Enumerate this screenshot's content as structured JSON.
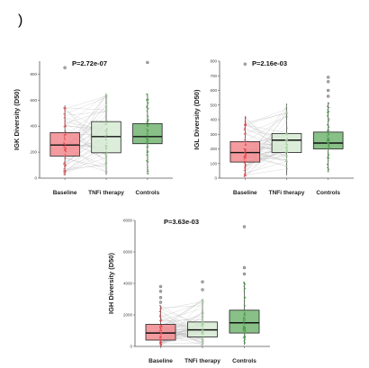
{
  "panel_label": ")",
  "colors": {
    "baseline": "#f28a8e",
    "baseline_points": "#e24a52",
    "tnfi": "#d6ebd3",
    "tnfi_points": "#a9cfa4",
    "controls": "#73b572",
    "controls_points": "#4f9a4e"
  },
  "chart_data": [
    {
      "type": "box",
      "ylabel": "IGK Diversity (D50)",
      "pvalue": "P=2.72e-07",
      "categories": [
        "Baseline",
        "TNFi therapy",
        "Controls"
      ],
      "ylim": [
        0,
        900
      ],
      "yticks": [
        0,
        200,
        400,
        600,
        800
      ],
      "boxes": [
        {
          "name": "Baseline",
          "q1": 170,
          "median": 255,
          "q3": 350,
          "whisker_low": 20,
          "whisker_high": 560,
          "outliers": [
            850
          ]
        },
        {
          "name": "TNFi therapy",
          "q1": 195,
          "median": 320,
          "q3": 435,
          "whisker_low": 25,
          "whisker_high": 650,
          "outliers": []
        },
        {
          "name": "Controls",
          "q1": 265,
          "median": 320,
          "q3": 420,
          "whisker_low": 30,
          "whisker_high": 650,
          "outliers": [
            890
          ]
        }
      ]
    },
    {
      "type": "box",
      "ylabel": "IGL Diversity (D50)",
      "pvalue": "P=2.16e-03",
      "categories": [
        "Baseline",
        "TNFi therapy",
        "Controls"
      ],
      "ylim": [
        0,
        800
      ],
      "yticks": [
        0,
        100,
        200,
        300,
        400,
        500,
        600,
        700,
        800
      ],
      "boxes": [
        {
          "name": "Baseline",
          "q1": 110,
          "median": 175,
          "q3": 250,
          "whisker_low": 10,
          "whisker_high": 420,
          "outliers": [
            780
          ]
        },
        {
          "name": "TNFi therapy",
          "q1": 175,
          "median": 260,
          "q3": 305,
          "whisker_low": 20,
          "whisker_high": 510,
          "outliers": []
        },
        {
          "name": "Controls",
          "q1": 200,
          "median": 240,
          "q3": 315,
          "whisker_low": 40,
          "whisker_high": 520,
          "outliers": [
            560,
            600,
            660,
            690
          ]
        }
      ]
    },
    {
      "type": "box",
      "ylabel": "IGH Diversity (D50)",
      "pvalue": "P=3.63e-03",
      "categories": [
        "Baseline",
        "TNFi therapy",
        "Controls"
      ],
      "ylim": [
        0,
        8000
      ],
      "yticks": [
        0,
        2000,
        4000,
        6000,
        8000
      ],
      "boxes": [
        {
          "name": "Baseline",
          "q1": 400,
          "median": 850,
          "q3": 1400,
          "whisker_low": 50,
          "whisker_high": 2600,
          "outliers": [
            2800,
            3100,
            3500,
            3800
          ]
        },
        {
          "name": "TNFi therapy",
          "q1": 600,
          "median": 1050,
          "q3": 1550,
          "whisker_low": 80,
          "whisker_high": 3000,
          "outliers": [
            3600,
            4100
          ]
        },
        {
          "name": "Controls",
          "q1": 850,
          "median": 1500,
          "q3": 2300,
          "whisker_low": 100,
          "whisker_high": 4100,
          "outliers": [
            4600,
            5000,
            7600
          ]
        }
      ]
    }
  ]
}
